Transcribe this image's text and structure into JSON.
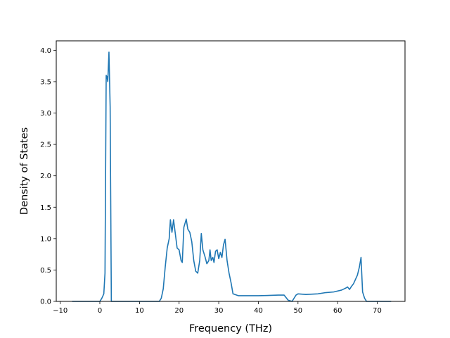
{
  "chart_data": {
    "type": "line",
    "title": "",
    "xlabel": "Frequency (THz)",
    "ylabel": "Density of States",
    "xlim": [
      -11,
      77
    ],
    "ylim": [
      0,
      4.15
    ],
    "xticks": [
      -10,
      0,
      10,
      20,
      30,
      40,
      50,
      60,
      70
    ],
    "yticks": [
      0.0,
      0.5,
      1.0,
      1.5,
      2.0,
      2.5,
      3.0,
      3.5,
      4.0
    ],
    "ytick_format_decimals": 1,
    "grid": false,
    "legend": "none",
    "series": [
      {
        "color": "#1f77b4",
        "x": [
          -7.0,
          0.0,
          0.5,
          1.0,
          1.3,
          1.6,
          1.8,
          2.0,
          2.3,
          2.6,
          2.9,
          3.2,
          3.5,
          10.0,
          15.0,
          15.5,
          16.0,
          16.5,
          17.0,
          17.5,
          17.8,
          18.2,
          18.6,
          19.0,
          19.5,
          20.0,
          20.5,
          20.8,
          21.2,
          21.8,
          22.2,
          22.7,
          23.2,
          23.7,
          24.2,
          24.7,
          25.2,
          25.6,
          26.0,
          26.5,
          27.0,
          27.5,
          27.8,
          28.1,
          28.5,
          28.8,
          29.2,
          29.6,
          30.0,
          30.4,
          30.8,
          31.2,
          31.6,
          32.1,
          32.6,
          33.1,
          33.6,
          35.0,
          40.0,
          45.0,
          46.5,
          47.5,
          48.5,
          49.0,
          49.5,
          50.0,
          52.0,
          55.0,
          57.0,
          59.0,
          61.0,
          62.0,
          62.5,
          63.0,
          63.5,
          64.0,
          64.5,
          65.0,
          65.5,
          65.9,
          66.3,
          66.8,
          67.3,
          68.0,
          73.5
        ],
        "y": [
          0.0,
          0.0,
          0.05,
          0.12,
          0.45,
          3.6,
          3.58,
          3.5,
          3.97,
          3.1,
          0.0,
          0.0,
          0.0,
          0.0,
          0.0,
          0.05,
          0.2,
          0.55,
          0.85,
          1.0,
          1.3,
          1.1,
          1.3,
          1.1,
          0.85,
          0.82,
          0.65,
          0.62,
          1.18,
          1.31,
          1.15,
          1.1,
          0.95,
          0.65,
          0.48,
          0.45,
          0.65,
          1.08,
          0.82,
          0.72,
          0.6,
          0.65,
          0.82,
          0.65,
          0.7,
          0.62,
          0.8,
          0.82,
          0.68,
          0.78,
          0.7,
          0.9,
          0.99,
          0.65,
          0.45,
          0.3,
          0.12,
          0.09,
          0.09,
          0.1,
          0.1,
          0.02,
          0.0,
          0.05,
          0.1,
          0.12,
          0.11,
          0.12,
          0.14,
          0.15,
          0.18,
          0.21,
          0.23,
          0.19,
          0.24,
          0.28,
          0.35,
          0.42,
          0.55,
          0.7,
          0.15,
          0.05,
          0.0,
          0.0,
          0.0
        ]
      }
    ]
  }
}
